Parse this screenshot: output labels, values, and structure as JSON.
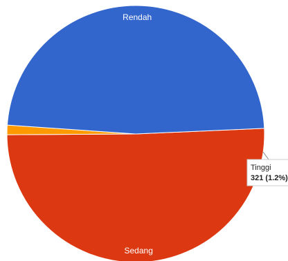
{
  "chart_data": {
    "type": "pie",
    "slices": [
      {
        "label": "Sedang",
        "value": 50.6,
        "color": "#dc3912"
      },
      {
        "label": "Tinggi",
        "value": 1.2,
        "color": "#ff9900"
      },
      {
        "label": "Rendah",
        "value": 48.2,
        "color": "#3366cc"
      }
    ],
    "tooltip": {
      "slice": "Tinggi",
      "title": "Tinggi",
      "value_text": "321 (1.2%)"
    }
  }
}
